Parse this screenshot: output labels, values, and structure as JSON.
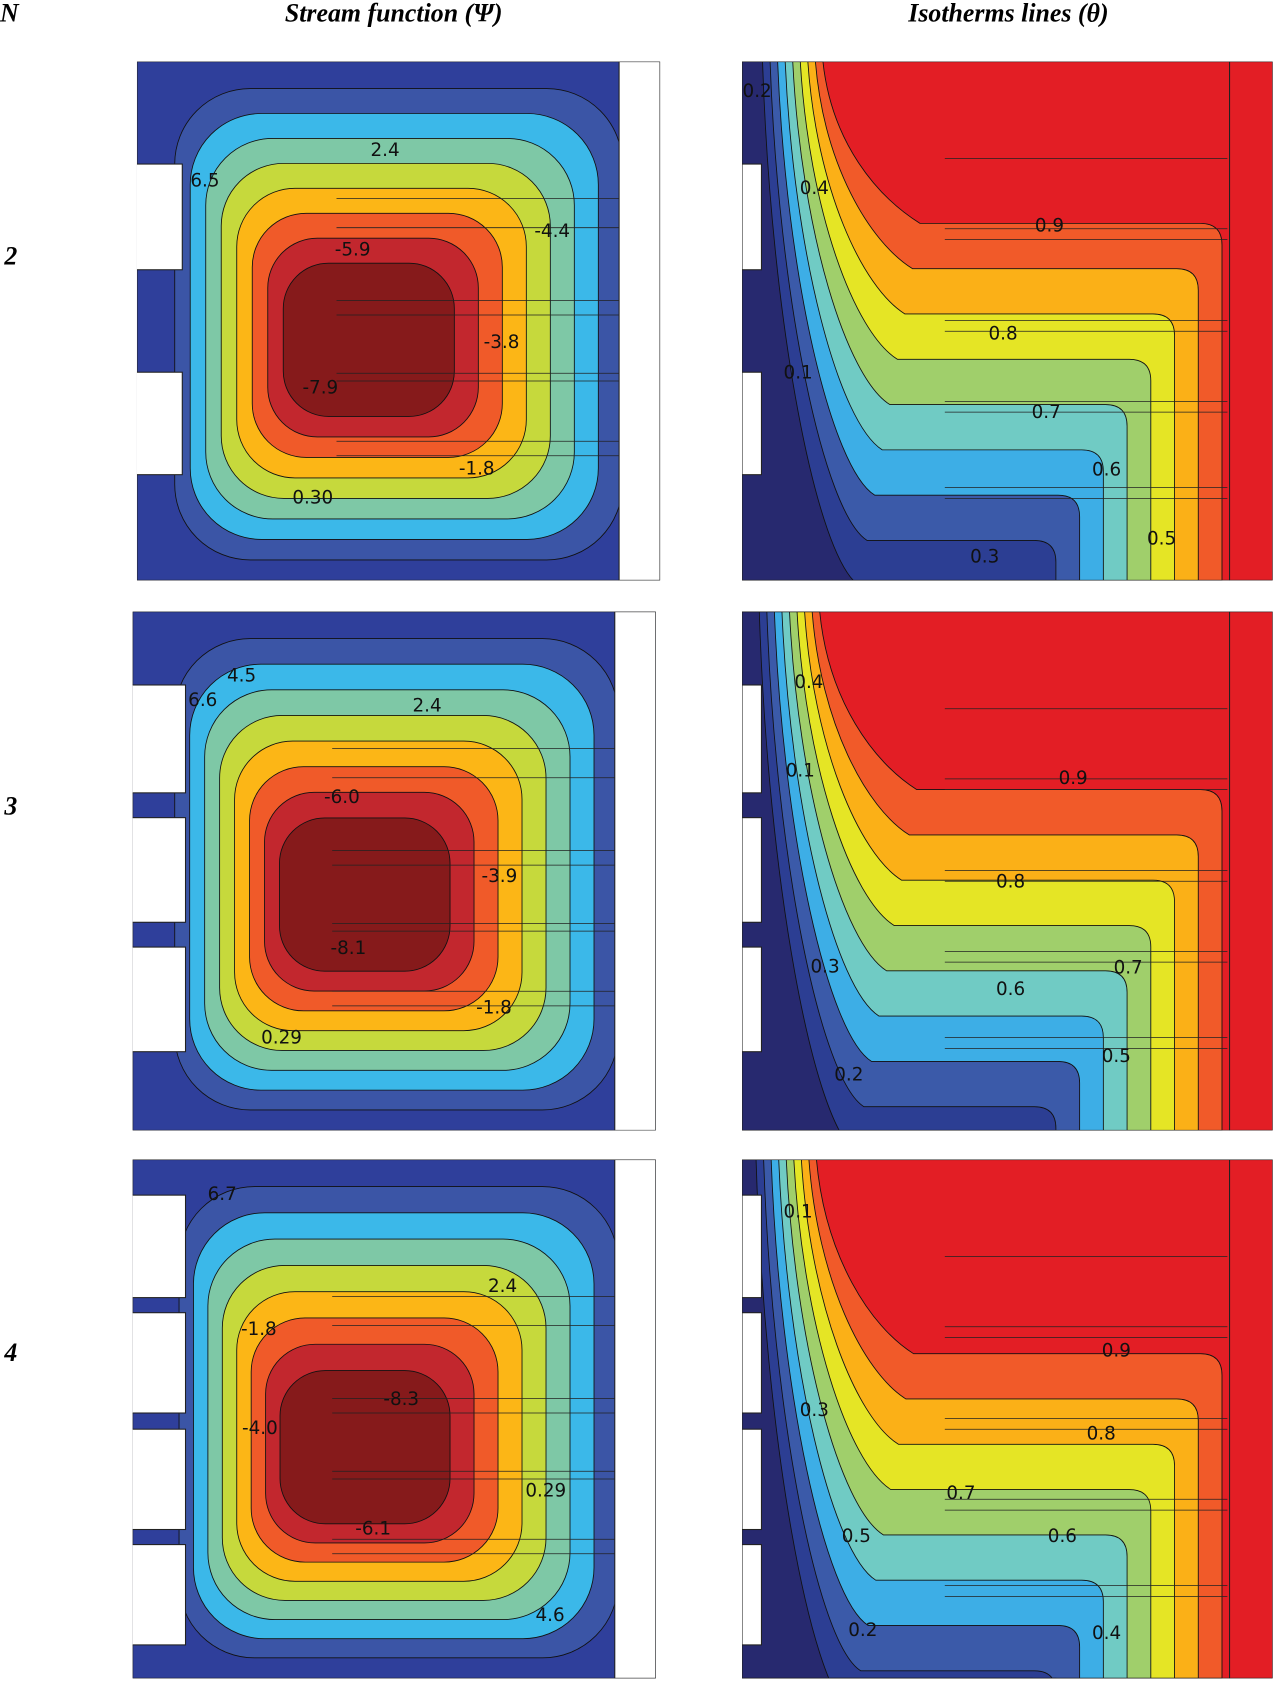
{
  "header": {
    "n_label": "N",
    "stream_title": "Stream function (Ψ)",
    "isotherm_title": "Isotherms lines (θ)"
  },
  "rows": [
    {
      "n": "2",
      "stream_labels": [
        "2.4",
        "6.5",
        "-4.4",
        "-5.9",
        "-3.8",
        "-7.9",
        "-1.8",
        "0.30"
      ],
      "isotherm_labels": [
        "0.2",
        "0.4",
        "0.9",
        "0.8",
        "0.1",
        "0.7",
        "0.6",
        "0.5",
        "0.3"
      ]
    },
    {
      "n": "3",
      "stream_labels": [
        "4.5",
        "6.6",
        "2.4",
        "-6.0",
        "-3.9",
        "-8.1",
        "-1.8",
        "0.29"
      ],
      "isotherm_labels": [
        "0.4",
        "0.1",
        "0.9",
        "0.8",
        "0.3",
        "0.7",
        "0.6",
        "0.5",
        "0.2"
      ]
    },
    {
      "n": "4",
      "stream_labels": [
        "6.7",
        "2.4",
        "-1.8",
        "-8.3",
        "-4.0",
        "0.29",
        "-6.1",
        "4.6"
      ],
      "isotherm_labels": [
        "0.1",
        "0.9",
        "0.3",
        "0.8",
        "0.7",
        "0.5",
        "0.6",
        "0.2",
        "0.4"
      ]
    }
  ]
}
